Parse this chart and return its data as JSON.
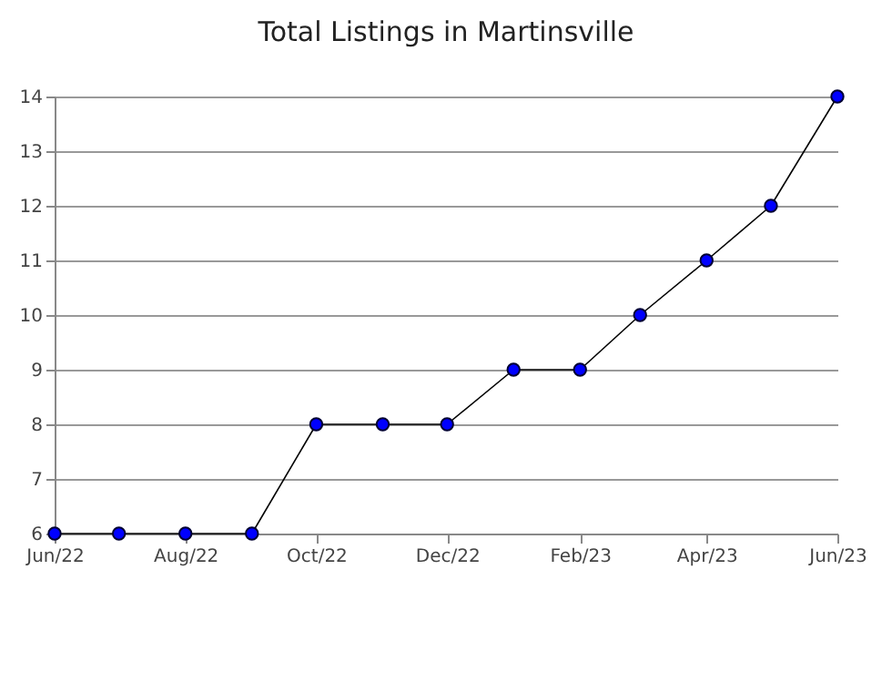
{
  "chart_data": {
    "type": "line",
    "title": "Total Listings in Martinsville",
    "x": [
      "2022-06",
      "2022-07",
      "2022-08",
      "2022-09",
      "2022-10",
      "2022-11",
      "2022-12",
      "2023-01",
      "2023-02",
      "2023-03",
      "2023-04",
      "2023-05",
      "2023-06"
    ],
    "series": [
      {
        "color": "#0000ff",
        "values": [
          6,
          6,
          6,
          6,
          8,
          8,
          8,
          9,
          9,
          10,
          11,
          12,
          14
        ]
      }
    ],
    "xlim": [
      "2022-06",
      "2023-06"
    ],
    "xticks": [
      {
        "value": "2022-06",
        "label": "Jun/22"
      },
      {
        "value": "2022-08",
        "label": "Aug/22"
      },
      {
        "value": "2022-10",
        "label": "Oct/22"
      },
      {
        "value": "2022-12",
        "label": "Dec/22"
      },
      {
        "value": "2023-02",
        "label": "Feb/23"
      },
      {
        "value": "2023-04",
        "label": "Apr/23"
      },
      {
        "value": "2023-06",
        "label": "Jun/23"
      }
    ],
    "ylim": [
      6,
      14
    ],
    "yticks": [
      6,
      7,
      8,
      9,
      10,
      11,
      12,
      13,
      14
    ],
    "grid": "y",
    "marker": "circle",
    "line_style": "solid"
  }
}
